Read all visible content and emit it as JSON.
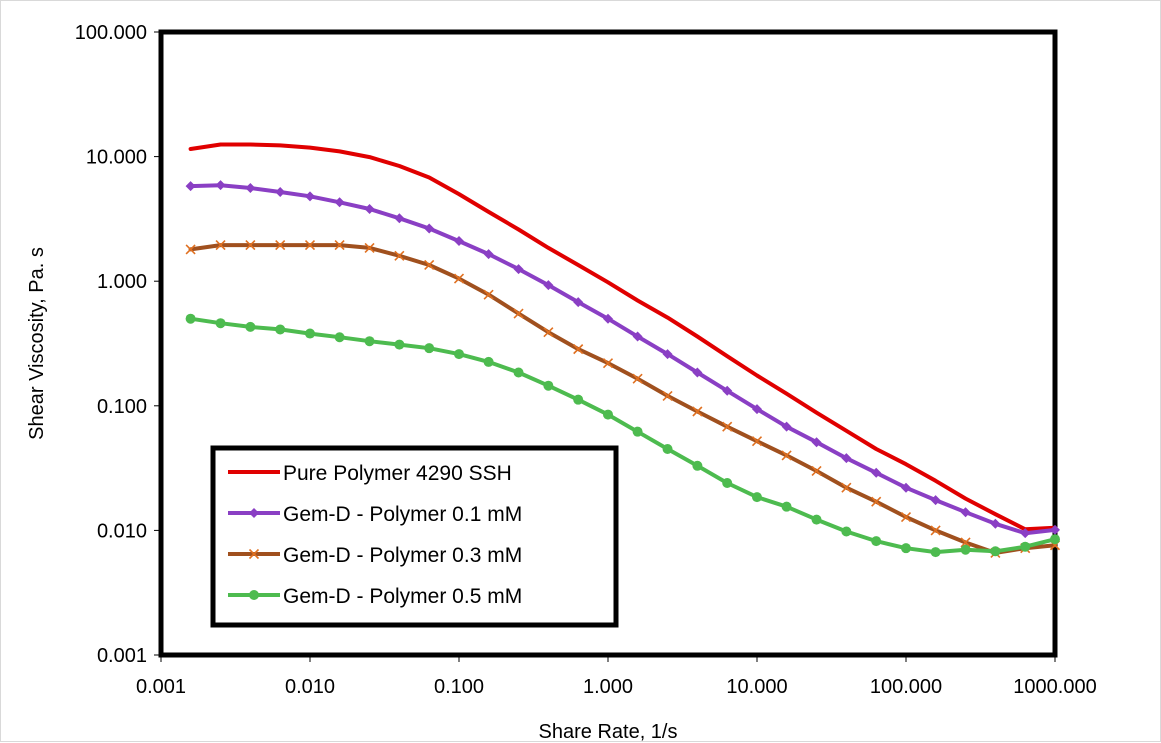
{
  "chart_data": {
    "type": "line",
    "title": "",
    "xlabel": "Share Rate, 1/s",
    "ylabel": "Shear Viscosity, Pa. s",
    "x_scale": "log",
    "y_scale": "log",
    "xlim": [
      0.001,
      1000
    ],
    "ylim": [
      0.001,
      100
    ],
    "grid": false,
    "legend_position": "bottom-left",
    "x_tick_labels": [
      "0.001",
      "0.010",
      "0.100",
      "1.000",
      "10.000",
      "100.000",
      "1000.000"
    ],
    "y_tick_labels": [
      "0.001",
      "0.010",
      "0.100",
      "1.000",
      "10.000",
      "100.000"
    ],
    "x": [
      0.00158,
      0.00251,
      0.00398,
      0.00631,
      0.01,
      0.0158,
      0.0251,
      0.0398,
      0.0631,
      0.1,
      0.158,
      0.251,
      0.398,
      0.631,
      1,
      1.58,
      2.51,
      3.98,
      6.31,
      10,
      15.8,
      25.1,
      39.8,
      63.1,
      100,
      158,
      251,
      398,
      631,
      1000
    ],
    "series": [
      {
        "name": "Pure Polymer 4290 SSH",
        "color": "#e00000",
        "marker": "none",
        "values": [
          11.5,
          12.5,
          12.5,
          12.3,
          11.8,
          11.0,
          9.9,
          8.4,
          6.8,
          5.0,
          3.6,
          2.6,
          1.85,
          1.35,
          0.98,
          0.7,
          0.51,
          0.36,
          0.25,
          0.175,
          0.125,
          0.088,
          0.063,
          0.045,
          0.034,
          0.025,
          0.018,
          0.0135,
          0.0102,
          0.0105
        ]
      },
      {
        "name": "Gem-D - Polymer 0.1 mM",
        "color": "#8a3fc4",
        "marker": "diamond",
        "values": [
          5.8,
          5.9,
          5.6,
          5.2,
          4.8,
          4.3,
          3.8,
          3.2,
          2.65,
          2.1,
          1.65,
          1.25,
          0.93,
          0.68,
          0.5,
          0.36,
          0.26,
          0.185,
          0.132,
          0.094,
          0.068,
          0.051,
          0.038,
          0.029,
          0.022,
          0.0175,
          0.014,
          0.0113,
          0.0095,
          0.0101
        ]
      },
      {
        "name": "Gem-D - Polymer 0.3 mM",
        "color": "#a0501e",
        "marker": "x",
        "values": [
          1.8,
          1.95,
          1.95,
          1.95,
          1.95,
          1.95,
          1.85,
          1.6,
          1.35,
          1.05,
          0.78,
          0.55,
          0.39,
          0.285,
          0.22,
          0.165,
          0.12,
          0.09,
          0.068,
          0.052,
          0.04,
          0.03,
          0.022,
          0.017,
          0.0128,
          0.01,
          0.008,
          0.0066,
          0.0072,
          0.0076
        ]
      },
      {
        "name": "Gem-D - Polymer 0.5 mM",
        "color": "#4dbb4f",
        "marker": "circle",
        "values": [
          0.5,
          0.46,
          0.43,
          0.41,
          0.38,
          0.355,
          0.33,
          0.31,
          0.29,
          0.26,
          0.225,
          0.185,
          0.145,
          0.112,
          0.085,
          0.062,
          0.045,
          0.033,
          0.024,
          0.0185,
          0.0155,
          0.0122,
          0.0098,
          0.0082,
          0.0072,
          0.0067,
          0.007,
          0.0068,
          0.0074,
          0.0085
        ]
      }
    ]
  }
}
